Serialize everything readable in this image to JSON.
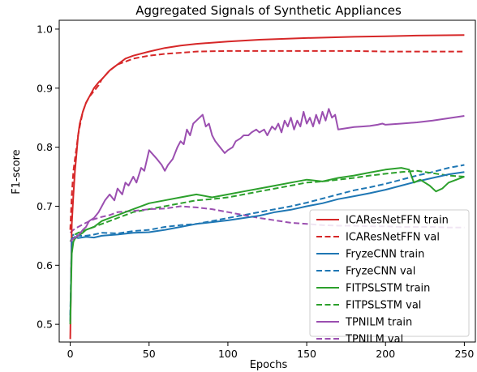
{
  "chart_data": {
    "type": "line",
    "title": "Aggregated Signals of Synthetic Appliances",
    "xlabel": "Epochs",
    "ylabel": "F1-score",
    "xlim": [
      -7,
      257
    ],
    "ylim": [
      0.47,
      1.015
    ],
    "xticks": [
      0,
      50,
      100,
      150,
      200,
      250
    ],
    "yticks": [
      0.5,
      0.6,
      0.7,
      0.8,
      0.9,
      1.0
    ],
    "xtick_labels": [
      "0",
      "50",
      "100",
      "150",
      "200",
      "250"
    ],
    "ytick_labels": [
      "0.5",
      "0.6",
      "0.7",
      "0.8",
      "0.9",
      "1.0"
    ],
    "grid": false,
    "legend_position": "lower-right",
    "series": [
      {
        "name": "ICAResNetFFN train",
        "color": "#d62728",
        "dash": "solid",
        "x": [
          0,
          1,
          2,
          3,
          4,
          5,
          6,
          8,
          10,
          12,
          15,
          18,
          20,
          25,
          30,
          35,
          40,
          50,
          60,
          70,
          80,
          100,
          120,
          150,
          180,
          200,
          220,
          250
        ],
        "y": [
          0.475,
          0.67,
          0.72,
          0.76,
          0.79,
          0.82,
          0.84,
          0.86,
          0.875,
          0.885,
          0.9,
          0.91,
          0.915,
          0.93,
          0.94,
          0.95,
          0.955,
          0.962,
          0.968,
          0.972,
          0.975,
          0.979,
          0.982,
          0.985,
          0.987,
          0.988,
          0.989,
          0.99
        ]
      },
      {
        "name": "ICAResNetFFN val",
        "color": "#d62728",
        "dash": "dashed",
        "x": [
          0,
          1,
          2,
          3,
          4,
          5,
          6,
          8,
          10,
          12,
          15,
          18,
          20,
          25,
          30,
          35,
          40,
          50,
          60,
          70,
          80,
          100,
          120,
          150,
          180,
          200,
          220,
          250
        ],
        "y": [
          0.66,
          0.72,
          0.76,
          0.78,
          0.8,
          0.82,
          0.835,
          0.86,
          0.875,
          0.885,
          0.895,
          0.905,
          0.915,
          0.93,
          0.94,
          0.945,
          0.95,
          0.955,
          0.958,
          0.96,
          0.962,
          0.963,
          0.963,
          0.963,
          0.963,
          0.962,
          0.962,
          0.962
        ]
      },
      {
        "name": "FryzeCNN train",
        "color": "#1f77b4",
        "dash": "solid",
        "x": [
          0,
          1,
          3,
          5,
          10,
          15,
          20,
          30,
          40,
          50,
          60,
          70,
          80,
          90,
          100,
          110,
          120,
          130,
          140,
          150,
          160,
          170,
          180,
          190,
          200,
          210,
          220,
          230,
          240,
          250
        ],
        "y": [
          0.505,
          0.645,
          0.648,
          0.646,
          0.648,
          0.647,
          0.65,
          0.652,
          0.655,
          0.656,
          0.66,
          0.665,
          0.67,
          0.673,
          0.676,
          0.68,
          0.684,
          0.69,
          0.694,
          0.7,
          0.705,
          0.712,
          0.717,
          0.722,
          0.728,
          0.735,
          0.742,
          0.748,
          0.754,
          0.758
        ]
      },
      {
        "name": "FryzeCNN val",
        "color": "#1f77b4",
        "dash": "dashed",
        "x": [
          0,
          1,
          3,
          5,
          10,
          15,
          20,
          30,
          40,
          50,
          60,
          70,
          80,
          90,
          100,
          110,
          120,
          130,
          140,
          150,
          160,
          170,
          180,
          190,
          200,
          210,
          220,
          230,
          240,
          250
        ],
        "y": [
          0.515,
          0.65,
          0.653,
          0.65,
          0.65,
          0.652,
          0.655,
          0.654,
          0.658,
          0.66,
          0.665,
          0.668,
          0.67,
          0.675,
          0.68,
          0.685,
          0.69,
          0.695,
          0.7,
          0.706,
          0.713,
          0.72,
          0.727,
          0.732,
          0.738,
          0.745,
          0.752,
          0.758,
          0.765,
          0.77
        ]
      },
      {
        "name": "FITPSLSTM train",
        "color": "#2ca02c",
        "dash": "solid",
        "x": [
          0,
          1,
          2,
          3,
          5,
          8,
          10,
          15,
          20,
          25,
          30,
          40,
          50,
          60,
          70,
          80,
          90,
          100,
          110,
          120,
          130,
          140,
          150,
          160,
          170,
          180,
          190,
          200,
          210,
          215,
          218,
          222,
          228,
          232,
          236,
          240,
          245,
          250
        ],
        "y": [
          0.5,
          0.62,
          0.64,
          0.645,
          0.65,
          0.655,
          0.66,
          0.665,
          0.675,
          0.68,
          0.685,
          0.695,
          0.705,
          0.71,
          0.715,
          0.72,
          0.715,
          0.72,
          0.725,
          0.73,
          0.735,
          0.74,
          0.745,
          0.742,
          0.748,
          0.752,
          0.757,
          0.762,
          0.765,
          0.762,
          0.74,
          0.745,
          0.735,
          0.725,
          0.73,
          0.74,
          0.745,
          0.75
        ]
      },
      {
        "name": "FITPSLSTM val",
        "color": "#2ca02c",
        "dash": "dashed",
        "x": [
          0,
          1,
          2,
          3,
          5,
          8,
          10,
          15,
          20,
          25,
          30,
          40,
          50,
          60,
          70,
          80,
          90,
          100,
          110,
          120,
          130,
          140,
          150,
          160,
          170,
          180,
          190,
          200,
          210,
          220,
          230,
          240,
          250
        ],
        "y": [
          0.64,
          0.645,
          0.65,
          0.652,
          0.655,
          0.658,
          0.66,
          0.665,
          0.67,
          0.675,
          0.68,
          0.69,
          0.695,
          0.7,
          0.705,
          0.71,
          0.712,
          0.715,
          0.72,
          0.725,
          0.73,
          0.735,
          0.74,
          0.742,
          0.745,
          0.748,
          0.752,
          0.755,
          0.758,
          0.76,
          0.756,
          0.752,
          0.75
        ]
      },
      {
        "name": "TPNILM train",
        "color": "#9b4fb0",
        "dash": "solid",
        "x": [
          0,
          2,
          5,
          8,
          10,
          12,
          15,
          18,
          20,
          22,
          25,
          28,
          30,
          33,
          35,
          37,
          40,
          42,
          45,
          47,
          50,
          55,
          58,
          60,
          62,
          65,
          68,
          70,
          72,
          74,
          76,
          78,
          80,
          82,
          84,
          86,
          88,
          90,
          92,
          95,
          98,
          100,
          103,
          105,
          108,
          110,
          113,
          115,
          118,
          120,
          123,
          125,
          128,
          130,
          132,
          134,
          136,
          138,
          140,
          142,
          144,
          146,
          148,
          150,
          152,
          154,
          156,
          158,
          160,
          162,
          164,
          166,
          168,
          170,
          175,
          180,
          185,
          190,
          195,
          198,
          200,
          210,
          220,
          230,
          240,
          250
        ],
        "y": [
          0.64,
          0.645,
          0.65,
          0.66,
          0.665,
          0.675,
          0.68,
          0.69,
          0.7,
          0.71,
          0.72,
          0.71,
          0.73,
          0.72,
          0.74,
          0.735,
          0.75,
          0.74,
          0.765,
          0.76,
          0.795,
          0.78,
          0.77,
          0.76,
          0.77,
          0.78,
          0.8,
          0.81,
          0.805,
          0.83,
          0.82,
          0.84,
          0.845,
          0.85,
          0.855,
          0.835,
          0.84,
          0.82,
          0.81,
          0.8,
          0.79,
          0.795,
          0.8,
          0.81,
          0.815,
          0.82,
          0.82,
          0.825,
          0.83,
          0.825,
          0.83,
          0.82,
          0.835,
          0.83,
          0.84,
          0.825,
          0.845,
          0.835,
          0.85,
          0.83,
          0.845,
          0.835,
          0.86,
          0.84,
          0.85,
          0.835,
          0.855,
          0.84,
          0.86,
          0.845,
          0.865,
          0.85,
          0.855,
          0.83,
          0.832,
          0.834,
          0.835,
          0.836,
          0.838,
          0.84,
          0.838,
          0.84,
          0.842,
          0.845,
          0.849,
          0.853
        ]
      },
      {
        "name": "TPNILM val",
        "color": "#9b4fb0",
        "dash": "dashed",
        "x": [
          0,
          2,
          5,
          10,
          15,
          20,
          25,
          30,
          40,
          50,
          60,
          70,
          80,
          90,
          100,
          110,
          120,
          130,
          140,
          150,
          160,
          170,
          180,
          190,
          200,
          210,
          220,
          230,
          240,
          250
        ],
        "y": [
          0.655,
          0.66,
          0.665,
          0.672,
          0.678,
          0.682,
          0.685,
          0.69,
          0.692,
          0.695,
          0.696,
          0.7,
          0.698,
          0.695,
          0.69,
          0.685,
          0.68,
          0.676,
          0.672,
          0.67,
          0.668,
          0.667,
          0.667,
          0.666,
          0.666,
          0.665,
          0.665,
          0.665,
          0.664,
          0.664
        ]
      }
    ]
  }
}
